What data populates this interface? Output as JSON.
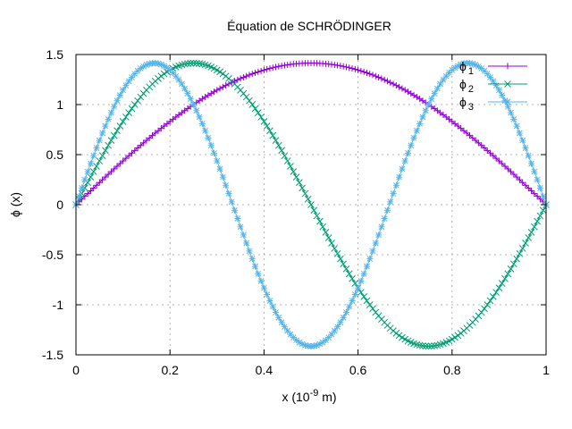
{
  "chart_data": {
    "type": "scatter",
    "title": "Équation de SCHRÖDINGER",
    "xlabel": {
      "main": "x (10",
      "sup": "-9",
      "unit": " m)"
    },
    "ylabel": "ϕ (x)",
    "xlim": [
      0,
      1
    ],
    "ylim": [
      -1.5,
      1.5
    ],
    "xticks": [
      {
        "value": 0,
        "label": "0"
      },
      {
        "value": 0.2,
        "label": "0.2"
      },
      {
        "value": 0.4,
        "label": "0.4"
      },
      {
        "value": 0.6,
        "label": "0.6"
      },
      {
        "value": 0.8,
        "label": "0.8"
      },
      {
        "value": 1,
        "label": "1"
      }
    ],
    "yticks": [
      {
        "value": -1.5,
        "label": "-1.5"
      },
      {
        "value": -1,
        "label": "-1"
      },
      {
        "value": -0.5,
        "label": "-0.5"
      },
      {
        "value": 0,
        "label": "0"
      },
      {
        "value": 0.5,
        "label": "0.5"
      },
      {
        "value": 1,
        "label": "1"
      },
      {
        "value": 1.5,
        "label": "1.5"
      }
    ],
    "grid": true,
    "legend_position": "top-right",
    "series": [
      {
        "name": "ϕ",
        "subscript": "1",
        "marker": "plus",
        "color": "#9400d3",
        "x": [
          0,
          0.025,
          0.05,
          0.075,
          0.1,
          0.125,
          0.15,
          0.175,
          0.2,
          0.225,
          0.25,
          0.275,
          0.3,
          0.325,
          0.35,
          0.375,
          0.4,
          0.425,
          0.45,
          0.475,
          0.5,
          0.525,
          0.55,
          0.575,
          0.6,
          0.625,
          0.65,
          0.675,
          0.7,
          0.725,
          0.75,
          0.775,
          0.8,
          0.825,
          0.85,
          0.875,
          0.9,
          0.925,
          0.95,
          0.975,
          1
        ],
        "y": [
          0,
          0.111,
          0.221,
          0.329,
          0.437,
          0.542,
          0.642,
          0.737,
          0.831,
          0.918,
          1.0,
          1.074,
          1.144,
          1.206,
          1.26,
          1.306,
          1.345,
          1.375,
          1.397,
          1.41,
          1.414,
          1.41,
          1.397,
          1.375,
          1.345,
          1.306,
          1.26,
          1.206,
          1.144,
          1.074,
          1.0,
          0.918,
          0.831,
          0.737,
          0.642,
          0.542,
          0.437,
          0.329,
          0.221,
          0.111,
          0
        ]
      },
      {
        "name": "ϕ",
        "subscript": "2",
        "marker": "cross",
        "color": "#009e73",
        "x": [
          0,
          0.025,
          0.05,
          0.075,
          0.1,
          0.125,
          0.15,
          0.175,
          0.2,
          0.225,
          0.25,
          0.275,
          0.3,
          0.325,
          0.35,
          0.375,
          0.4,
          0.425,
          0.45,
          0.475,
          0.5,
          0.525,
          0.55,
          0.575,
          0.6,
          0.625,
          0.65,
          0.675,
          0.7,
          0.725,
          0.75,
          0.775,
          0.8,
          0.825,
          0.85,
          0.875,
          0.9,
          0.925,
          0.95,
          0.975,
          1
        ],
        "y": [
          0,
          0.221,
          0.437,
          0.642,
          0.831,
          1.0,
          1.144,
          1.26,
          1.345,
          1.397,
          1.414,
          1.397,
          1.345,
          1.26,
          1.144,
          1.0,
          0.831,
          0.642,
          0.437,
          0.221,
          0,
          -0.221,
          -0.437,
          -0.642,
          -0.831,
          -1.0,
          -1.144,
          -1.26,
          -1.345,
          -1.397,
          -1.414,
          -1.397,
          -1.345,
          -1.26,
          -1.144,
          -1.0,
          -0.831,
          -0.642,
          -0.437,
          -0.221,
          0
        ]
      },
      {
        "name": "ϕ",
        "subscript": "3",
        "marker": "star",
        "color": "#56b4e9",
        "x": [
          0,
          0.025,
          0.05,
          0.075,
          0.1,
          0.125,
          0.15,
          0.175,
          0.2,
          0.225,
          0.25,
          0.275,
          0.3,
          0.325,
          0.35,
          0.375,
          0.4,
          0.425,
          0.45,
          0.475,
          0.5,
          0.525,
          0.55,
          0.575,
          0.6,
          0.625,
          0.65,
          0.675,
          0.7,
          0.725,
          0.75,
          0.775,
          0.8,
          0.825,
          0.85,
          0.875,
          0.9,
          0.925,
          0.95,
          0.975,
          1
        ],
        "y": [
          0,
          0.329,
          0.642,
          0.918,
          1.144,
          1.306,
          1.397,
          1.41,
          1.345,
          1.206,
          1.0,
          0.737,
          0.437,
          0.111,
          -0.221,
          -0.542,
          -0.831,
          -1.074,
          -1.26,
          -1.375,
          -1.414,
          -1.375,
          -1.26,
          -1.074,
          -0.831,
          -0.542,
          -0.221,
          0.111,
          0.437,
          0.737,
          1.0,
          1.206,
          1.345,
          1.41,
          1.397,
          1.306,
          1.144,
          0.918,
          0.642,
          0.329,
          0
        ]
      }
    ]
  }
}
